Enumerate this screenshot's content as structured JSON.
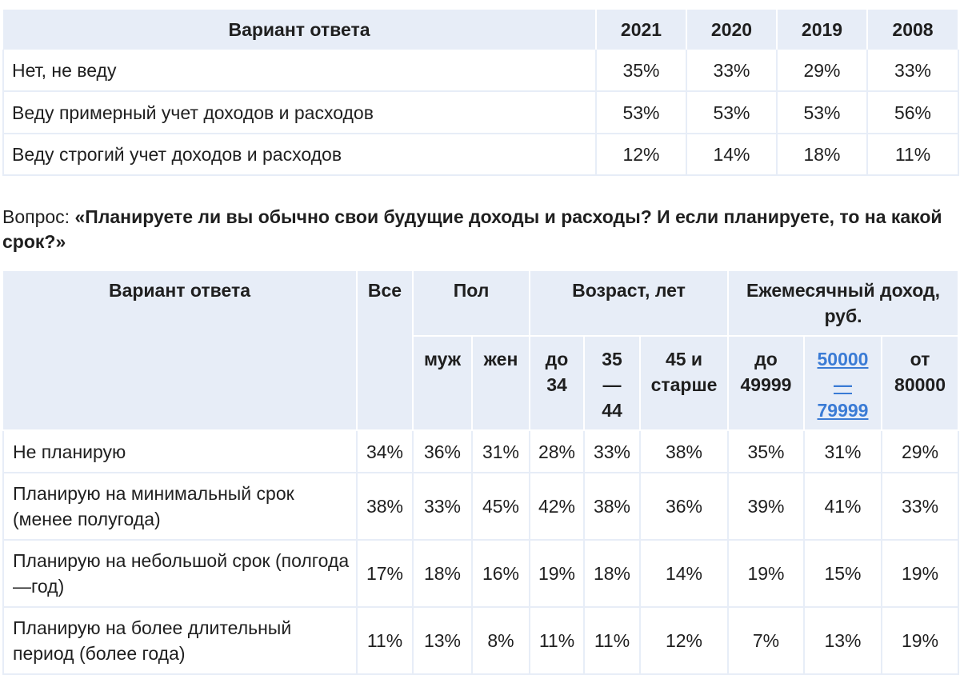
{
  "table1": {
    "header": [
      "Вариант ответа",
      "2021",
      "2020",
      "2019",
      "2008"
    ],
    "rows": [
      {
        "label": "Нет, не веду",
        "values": [
          "35%",
          "33%",
          "29%",
          "33%"
        ]
      },
      {
        "label": "Веду примерный учет доходов и расходов",
        "values": [
          "53%",
          "53%",
          "53%",
          "56%"
        ]
      },
      {
        "label": "Веду строгий учет доходов и расходов",
        "values": [
          "12%",
          "14%",
          "18%",
          "11%"
        ]
      }
    ]
  },
  "question": {
    "prefix": "Вопрос: ",
    "text": "«Планируете ли вы обычно свои будущие доходы и расходы? И если планируете, то на какой срок?»"
  },
  "table2": {
    "answer_header": "Вариант ответа",
    "all_header": "Все",
    "groups": [
      "Пол",
      "Возраст, лет",
      "Ежемесячный доход, руб."
    ],
    "subheaders": [
      "муж",
      "жен",
      "до 34",
      "35 — 44",
      "45 и старше",
      "до 49999",
      "50000 — 79999",
      "от 80000"
    ],
    "rows": [
      {
        "label": "Не планирую",
        "values": [
          "34%",
          "36%",
          "31%",
          "28%",
          "33%",
          "38%",
          "35%",
          "31%",
          "29%"
        ]
      },
      {
        "label": "Планирую на минимальный срок (менее полугода)",
        "values": [
          "38%",
          "33%",
          "45%",
          "42%",
          "38%",
          "36%",
          "39%",
          "41%",
          "33%"
        ]
      },
      {
        "label": "Планирую на небольшой срок (полгода—год)",
        "values": [
          "17%",
          "18%",
          "16%",
          "19%",
          "18%",
          "14%",
          "19%",
          "15%",
          "19%"
        ]
      },
      {
        "label": "Планирую на более длительный период (более года)",
        "values": [
          "11%",
          "13%",
          "8%",
          "11%",
          "11%",
          "12%",
          "7%",
          "13%",
          "19%"
        ]
      }
    ]
  },
  "colors": {
    "header_bg": "#e7edf7",
    "link": "#3a7bd5"
  }
}
